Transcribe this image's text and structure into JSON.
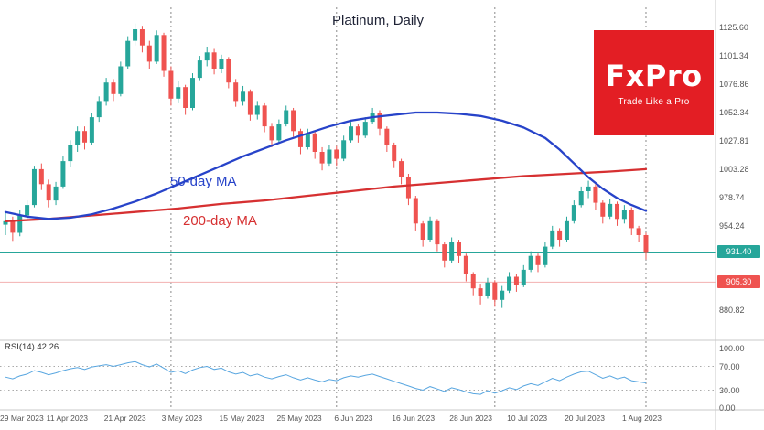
{
  "title": "Platinum, Daily",
  "logo": {
    "name": "FxPro",
    "tagline": "Trade Like a Pro"
  },
  "ma_labels": {
    "ma50": "50-day MA",
    "ma200": "200-day MA"
  },
  "rsi_panel": {
    "header": "RSI(14) 42.26",
    "ticks": [
      {
        "label": "100.00",
        "value": 100
      },
      {
        "label": "70.00",
        "value": 70
      },
      {
        "label": "30.00",
        "value": 30
      },
      {
        "label": "0.00",
        "value": 0
      }
    ]
  },
  "price_axis": {
    "ticks": [
      {
        "label": "1125.60",
        "value": 1125.6
      },
      {
        "label": "1101.34",
        "value": 1101.34
      },
      {
        "label": "1076.86",
        "value": 1076.86
      },
      {
        "label": "1052.34",
        "value": 1052.34
      },
      {
        "label": "1027.81",
        "value": 1027.81
      },
      {
        "label": "1003.28",
        "value": 1003.28
      },
      {
        "label": "978.74",
        "value": 978.74
      },
      {
        "label": "954.24",
        "value": 954.24
      },
      {
        "label": "880.82",
        "value": 880.82
      }
    ],
    "current_badge": {
      "label": "931.40",
      "value": 931.4,
      "color": "#26a69a"
    },
    "alert_badge": {
      "label": "905.30",
      "value": 905.3,
      "color": "#ef5350"
    }
  },
  "date_axis": {
    "ticks": [
      {
        "label": "29 Mar 2023",
        "index": 0
      },
      {
        "label": "11 Apr 2023",
        "index": 9
      },
      {
        "label": "21 Apr 2023",
        "index": 17
      },
      {
        "label": "3 May 2023",
        "index": 25
      },
      {
        "label": "15 May 2023",
        "index": 33
      },
      {
        "label": "25 May 2023",
        "index": 41
      },
      {
        "label": "6 Jun 2023",
        "index": 49
      },
      {
        "label": "16 Jun 2023",
        "index": 57
      },
      {
        "label": "28 Jun 2023",
        "index": 65
      },
      {
        "label": "10 Jul 2023",
        "index": 73
      },
      {
        "label": "20 Jul 2023",
        "index": 81
      },
      {
        "label": "1 Aug 2023",
        "index": 89
      }
    ]
  },
  "colors": {
    "background": "#ffffff",
    "candle_up": "#26a69a",
    "candle_down": "#ef5350",
    "ma50": "#2743c9",
    "ma200": "#d63031",
    "rsi_line": "#58a6e0",
    "current_price_line": "#26a69a",
    "alert_line": "#f2b0b0",
    "logo_bg": "#e31e24",
    "axis_text": "#555555",
    "separator": "#c9c9c9",
    "month_grid": "#8a8a8a",
    "rsi_level_dots": "#aaaaaa",
    "title_text": "#1e2235"
  },
  "chart_data": {
    "type": "candlestick",
    "instrument": "Platinum",
    "timeframe": "Daily",
    "title": "Platinum, Daily",
    "ylim": [
      855,
      1143
    ],
    "candles": [
      [
        955,
        965,
        946,
        958
      ],
      [
        958,
        962,
        941,
        948
      ],
      [
        948,
        968,
        945,
        963
      ],
      [
        963,
        976,
        958,
        972
      ],
      [
        972,
        1006,
        970,
        1003
      ],
      [
        1003,
        1008,
        985,
        990
      ],
      [
        990,
        994,
        970,
        976
      ],
      [
        976,
        992,
        972,
        988
      ],
      [
        988,
        1014,
        986,
        1010
      ],
      [
        1010,
        1028,
        1005,
        1024
      ],
      [
        1024,
        1040,
        1018,
        1036
      ],
      [
        1036,
        1040,
        1020,
        1026
      ],
      [
        1026,
        1052,
        1024,
        1048
      ],
      [
        1048,
        1066,
        1044,
        1062
      ],
      [
        1062,
        1082,
        1058,
        1078
      ],
      [
        1078,
        1081,
        1062,
        1068
      ],
      [
        1068,
        1096,
        1066,
        1092
      ],
      [
        1092,
        1118,
        1090,
        1114
      ],
      [
        1114,
        1129,
        1110,
        1124
      ],
      [
        1124,
        1127,
        1104,
        1110
      ],
      [
        1110,
        1114,
        1090,
        1096
      ],
      [
        1096,
        1123,
        1094,
        1119
      ],
      [
        1119,
        1121,
        1083,
        1088
      ],
      [
        1088,
        1092,
        1058,
        1064
      ],
      [
        1064,
        1079,
        1060,
        1074
      ],
      [
        1074,
        1076,
        1050,
        1056
      ],
      [
        1056,
        1086,
        1054,
        1082
      ],
      [
        1082,
        1101,
        1080,
        1097
      ],
      [
        1097,
        1109,
        1092,
        1104
      ],
      [
        1104,
        1107,
        1085,
        1090
      ],
      [
        1090,
        1102,
        1086,
        1098
      ],
      [
        1098,
        1100,
        1073,
        1078
      ],
      [
        1078,
        1081,
        1057,
        1062
      ],
      [
        1062,
        1075,
        1058,
        1070
      ],
      [
        1070,
        1072,
        1045,
        1050
      ],
      [
        1050,
        1062,
        1046,
        1058
      ],
      [
        1058,
        1060,
        1035,
        1040
      ],
      [
        1040,
        1043,
        1022,
        1028
      ],
      [
        1028,
        1046,
        1026,
        1042
      ],
      [
        1042,
        1058,
        1040,
        1054
      ],
      [
        1054,
        1056,
        1031,
        1036
      ],
      [
        1036,
        1038,
        1016,
        1022
      ],
      [
        1022,
        1038,
        1020,
        1034
      ],
      [
        1034,
        1036,
        1012,
        1018
      ],
      [
        1018,
        1022,
        1002,
        1008
      ],
      [
        1008,
        1024,
        1006,
        1020
      ],
      [
        1020,
        1023,
        1006,
        1012
      ],
      [
        1012,
        1032,
        1010,
        1028
      ],
      [
        1028,
        1044,
        1026,
        1040
      ],
      [
        1040,
        1042,
        1026,
        1032
      ],
      [
        1032,
        1048,
        1030,
        1044
      ],
      [
        1044,
        1056,
        1042,
        1052
      ],
      [
        1052,
        1054,
        1032,
        1038
      ],
      [
        1038,
        1040,
        1018,
        1024
      ],
      [
        1024,
        1026,
        1004,
        1010
      ],
      [
        1010,
        1012,
        990,
        996
      ],
      [
        996,
        999,
        972,
        978
      ],
      [
        978,
        980,
        950,
        956
      ],
      [
        956,
        958,
        936,
        942
      ],
      [
        942,
        962,
        940,
        958
      ],
      [
        958,
        960,
        932,
        938
      ],
      [
        938,
        940,
        918,
        924
      ],
      [
        924,
        944,
        922,
        940
      ],
      [
        940,
        942,
        922,
        928
      ],
      [
        928,
        930,
        906,
        912
      ],
      [
        912,
        914,
        894,
        900
      ],
      [
        900,
        904,
        886,
        893
      ],
      [
        893,
        909,
        891,
        905
      ],
      [
        905,
        907,
        884,
        890
      ],
      [
        890,
        902,
        883,
        898
      ],
      [
        898,
        914,
        896,
        910
      ],
      [
        910,
        912,
        897,
        903
      ],
      [
        903,
        920,
        901,
        916
      ],
      [
        916,
        932,
        914,
        928
      ],
      [
        928,
        930,
        914,
        920
      ],
      [
        920,
        940,
        918,
        936
      ],
      [
        936,
        954,
        934,
        950
      ],
      [
        950,
        952,
        936,
        942
      ],
      [
        942,
        962,
        940,
        958
      ],
      [
        958,
        976,
        956,
        972
      ],
      [
        972,
        988,
        970,
        984
      ],
      [
        984,
        993,
        978,
        988
      ],
      [
        988,
        990,
        968,
        974
      ],
      [
        974,
        976,
        956,
        962
      ],
      [
        962,
        977,
        960,
        973
      ],
      [
        973,
        975,
        954,
        960
      ],
      [
        960,
        972,
        956,
        968
      ],
      [
        968,
        970,
        946,
        952
      ],
      [
        952,
        954,
        940,
        946
      ],
      [
        946,
        948,
        925,
        931.4
      ]
    ],
    "overlays": [
      {
        "id": "ma50",
        "name": "50-day MA",
        "color": "#2743c9",
        "points": [
          [
            0,
            966
          ],
          [
            3,
            962
          ],
          [
            6,
            960
          ],
          [
            9,
            961
          ],
          [
            12,
            964
          ],
          [
            15,
            969
          ],
          [
            18,
            975
          ],
          [
            21,
            982
          ],
          [
            24,
            990
          ],
          [
            27,
            998
          ],
          [
            30,
            1006
          ],
          [
            33,
            1014
          ],
          [
            36,
            1021
          ],
          [
            39,
            1028
          ],
          [
            42,
            1034
          ],
          [
            45,
            1040
          ],
          [
            48,
            1045
          ],
          [
            51,
            1048
          ],
          [
            54,
            1050
          ],
          [
            57,
            1052
          ],
          [
            60,
            1052
          ],
          [
            63,
            1051
          ],
          [
            66,
            1049
          ],
          [
            69,
            1045
          ],
          [
            72,
            1039
          ],
          [
            75,
            1030
          ],
          [
            77,
            1020
          ],
          [
            79,
            1008
          ],
          [
            81,
            996
          ],
          [
            83,
            986
          ],
          [
            85,
            978
          ],
          [
            87,
            972
          ],
          [
            89,
            967
          ]
        ]
      },
      {
        "id": "ma200",
        "name": "200-day MA",
        "color": "#d63031",
        "points": [
          [
            0,
            958
          ],
          [
            6,
            960
          ],
          [
            12,
            963
          ],
          [
            18,
            966
          ],
          [
            24,
            969
          ],
          [
            30,
            973
          ],
          [
            36,
            976
          ],
          [
            42,
            980
          ],
          [
            48,
            984
          ],
          [
            54,
            988
          ],
          [
            60,
            991
          ],
          [
            66,
            994
          ],
          [
            72,
            997
          ],
          [
            78,
            999
          ],
          [
            84,
            1001
          ],
          [
            89,
            1003
          ]
        ]
      }
    ],
    "hlines": [
      {
        "value": 931.4,
        "color": "#26a69a",
        "style": "solid",
        "role": "current-price"
      },
      {
        "value": 905.3,
        "color": "#f2b0b0",
        "style": "solid",
        "role": "support-level"
      }
    ],
    "month_separator_indices": [
      23,
      46,
      68,
      89
    ],
    "rsi": {
      "name": "RSI(14)",
      "period": 14,
      "last": 42.26,
      "ylim": [
        0,
        100
      ],
      "levels": [
        70,
        30
      ],
      "values": [
        52,
        49,
        54,
        57,
        63,
        60,
        56,
        59,
        63,
        66,
        68,
        65,
        69,
        71,
        73,
        70,
        73,
        76,
        78,
        73,
        69,
        74,
        67,
        60,
        63,
        58,
        64,
        68,
        70,
        65,
        67,
        61,
        57,
        60,
        54,
        57,
        52,
        49,
        53,
        56,
        51,
        47,
        51,
        47,
        44,
        48,
        46,
        51,
        54,
        52,
        55,
        57,
        53,
        49,
        45,
        41,
        37,
        33,
        30,
        36,
        32,
        28,
        34,
        31,
        27,
        24,
        23,
        29,
        25,
        29,
        34,
        31,
        37,
        41,
        38,
        44,
        50,
        46,
        52,
        57,
        61,
        62,
        56,
        50,
        54,
        49,
        52,
        46,
        44,
        42.26
      ]
    }
  }
}
